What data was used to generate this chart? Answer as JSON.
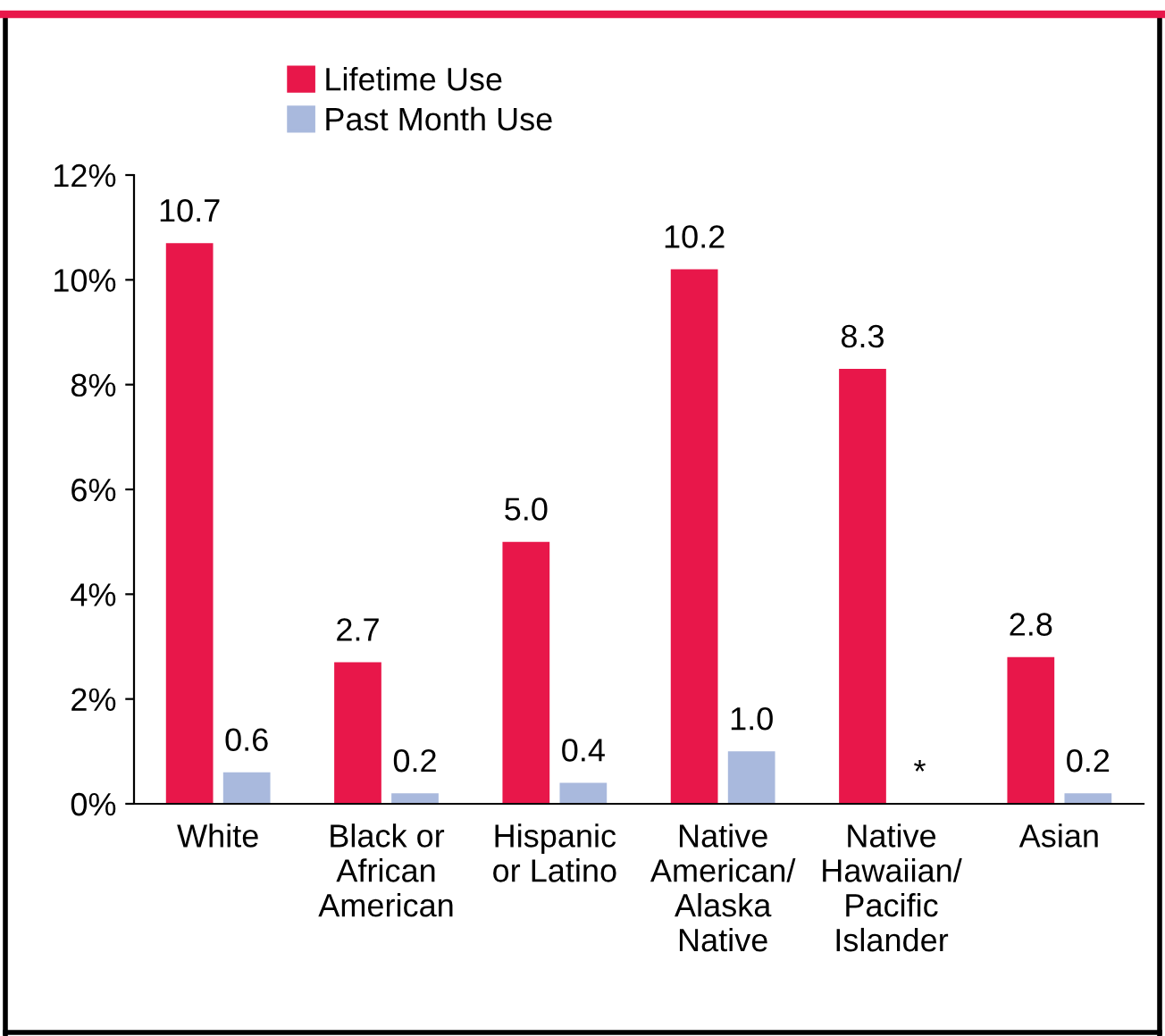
{
  "chart_data": {
    "type": "bar",
    "categories": [
      "White",
      "Black or\nAfrican\nAmerican",
      "Hispanic\nor Latino",
      "Native\nAmerican/\nAlaska\nNative",
      "Native\nHawaiian/\nPacific\nIslander",
      "Asian"
    ],
    "series": [
      {
        "name": "Lifetime Use",
        "color": "#e8174a",
        "values": [
          10.7,
          2.7,
          5.0,
          10.2,
          8.3,
          2.8
        ],
        "value_labels": [
          "10.7",
          "2.7",
          "5.0",
          "10.2",
          "8.3",
          "2.8"
        ]
      },
      {
        "name": "Past Month Use",
        "color": "#a9b9dd",
        "values": [
          0.6,
          0.2,
          0.4,
          1.0,
          null,
          0.2
        ],
        "value_labels": [
          "0.6",
          "0.2",
          "0.4",
          "1.0",
          "*",
          "0.2"
        ]
      }
    ],
    "ylim": [
      0,
      12
    ],
    "yticks": [
      {
        "value": 0,
        "label": "0%"
      },
      {
        "value": 2,
        "label": "2%"
      },
      {
        "value": 4,
        "label": "4%"
      },
      {
        "value": 6,
        "label": "6%"
      },
      {
        "value": 8,
        "label": "8%"
      },
      {
        "value": 10,
        "label": "10%"
      },
      {
        "value": 12,
        "label": "12%"
      }
    ],
    "legend": "top left",
    "grid": false
  }
}
